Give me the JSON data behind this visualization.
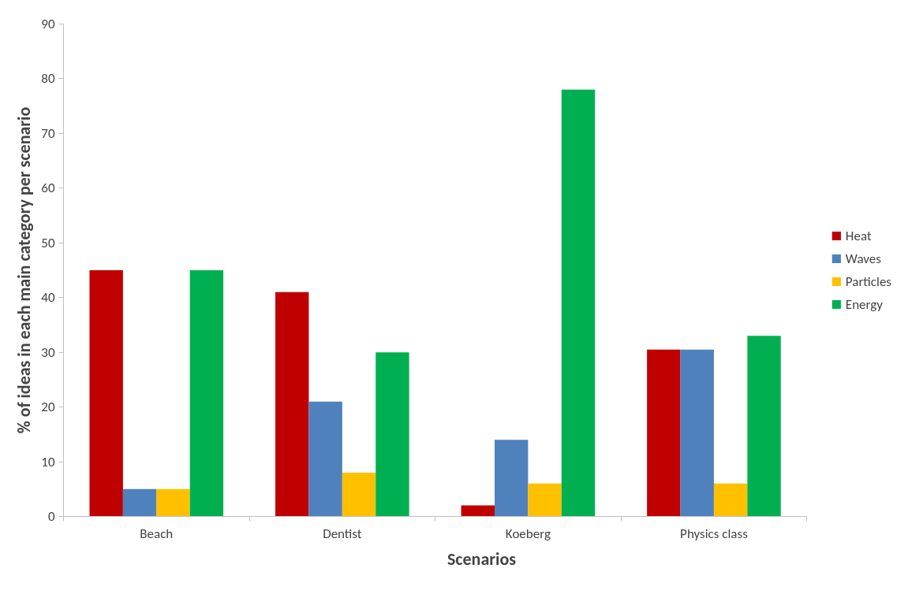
{
  "chart_data": {
    "type": "bar",
    "xlabel": "Scenarios",
    "ylabel": "% of ideas in each main category per scenario",
    "categories": [
      "Beach",
      "Dentist",
      "Koeberg",
      "Physics class"
    ],
    "series": [
      {
        "name": "Heat",
        "color": "#c00000",
        "values": [
          45,
          41,
          2,
          30.5
        ]
      },
      {
        "name": "Waves",
        "color": "#4f81bd",
        "values": [
          5,
          21,
          14,
          30.5
        ]
      },
      {
        "name": "Particles",
        "color": "#ffc000",
        "values": [
          5,
          8,
          6,
          6
        ]
      },
      {
        "name": "Energy",
        "color": "#00b050",
        "values": [
          45,
          30,
          78,
          33
        ]
      }
    ],
    "ylim": [
      0,
      90
    ],
    "yticks": [
      0,
      10,
      20,
      30,
      40,
      50,
      60,
      70,
      80,
      90
    ],
    "grid": false,
    "legend": "right"
  }
}
